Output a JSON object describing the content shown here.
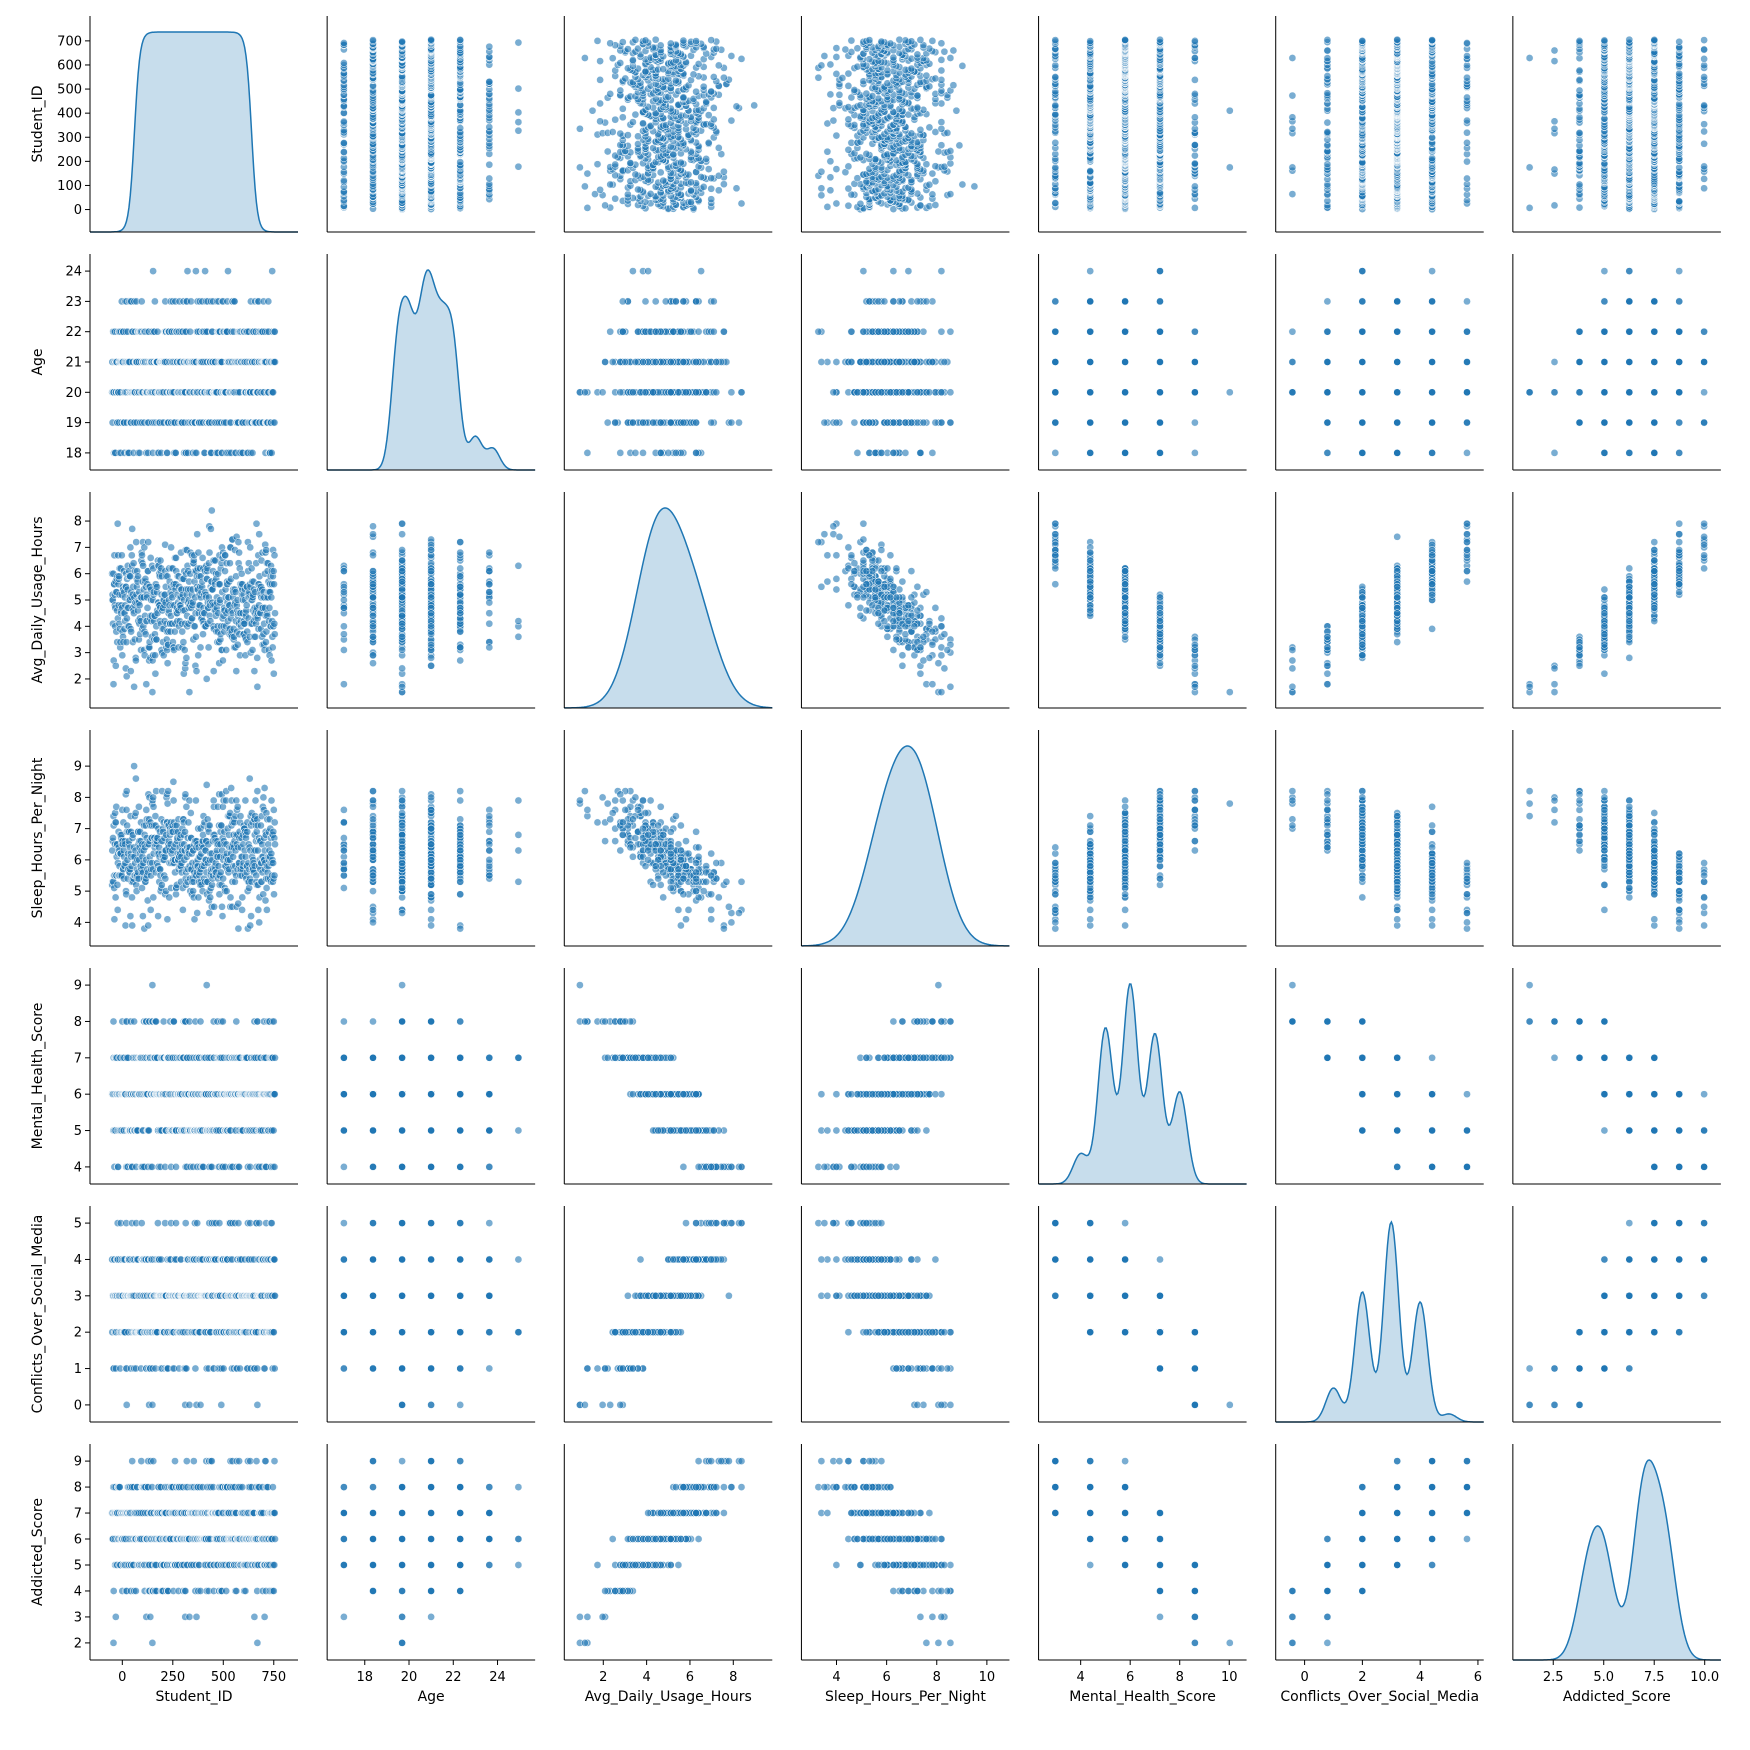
{
  "chart_data": {
    "type": "scatter",
    "variant": "pairplot",
    "diagonal": "kde",
    "colors": {
      "marker": "#1f77b4",
      "kde_fill": "#1f77b4",
      "axis": "#000000"
    },
    "grid": false,
    "variables": [
      {
        "name": "Student_ID",
        "lim": [
          -60,
          770
        ],
        "ticks": [
          0,
          100,
          200,
          300,
          400,
          500,
          600,
          700
        ],
        "xticks": [
          0,
          250,
          500,
          750
        ],
        "xtick_labels": [
          "0",
          "250",
          "500",
          "750"
        ]
      },
      {
        "name": "Age",
        "lim": [
          17.7,
          24.3
        ],
        "ticks": [
          18,
          19,
          20,
          21,
          22,
          23,
          24
        ],
        "xticks": [
          18,
          20,
          22,
          24
        ],
        "xtick_labels": [
          "18",
          "20",
          "22",
          "24"
        ]
      },
      {
        "name": "Avg_Daily_Usage_Hours",
        "lim": [
          1.2,
          8.8
        ],
        "ticks": [
          2,
          3,
          4,
          5,
          6,
          7,
          8
        ],
        "xticks": [
          2,
          4,
          6,
          8
        ],
        "xtick_labels": [
          "2",
          "4",
          "6",
          "8"
        ]
      },
      {
        "name": "Sleep_Hours_Per_Night",
        "lim": [
          3.5,
          9.9
        ],
        "ticks": [
          4,
          5,
          6,
          7,
          8,
          9
        ],
        "xticks": [
          4,
          6,
          8,
          10
        ],
        "xtick_labels": [
          "4",
          "6",
          "8",
          "10"
        ]
      },
      {
        "name": "Mental_Health_Score",
        "lim": [
          3.75,
          9.25
        ],
        "ticks": [
          4,
          5,
          6,
          7,
          8,
          9
        ],
        "xticks": [
          4,
          6,
          8,
          10
        ],
        "xtick_labels": [
          "4",
          "6",
          "8",
          "10"
        ]
      },
      {
        "name": "Conflicts_Over_Social_Media",
        "lim": [
          -0.25,
          5.25
        ],
        "ticks": [
          0,
          1,
          2,
          3,
          4,
          5
        ],
        "xticks": [
          0,
          2,
          4,
          6
        ],
        "xtick_labels": [
          "0",
          "2",
          "4",
          "6"
        ]
      },
      {
        "name": "Addicted_Score",
        "lim": [
          1.65,
          9.35
        ],
        "ticks": [
          2,
          3,
          4,
          5,
          6,
          7,
          8,
          9
        ],
        "xticks": [
          2.5,
          5.0,
          7.5,
          10.0
        ],
        "xtick_labels": [
          "2.5",
          "5.0",
          "7.5",
          "10.0"
        ]
      }
    ],
    "diagonal_xlims": [
      [
        -160,
        870
      ],
      [
        16.3,
        25.7
      ],
      [
        0.2,
        9.8
      ],
      [
        2.6,
        10.9
      ],
      [
        2.3,
        10.7
      ],
      [
        -1,
        6.2
      ],
      [
        0.5,
        10.8
      ]
    ],
    "kde_peaks": {
      "Student_ID": [
        [
          150,
          700
        ],
        [
          600,
          700
        ]
      ],
      "Age": [
        [
          19.5,
          1.0
        ],
        [
          20.0,
          1.05
        ],
        [
          20.6,
          0.98
        ],
        [
          21.0,
          1.02
        ],
        [
          21.5,
          0.93
        ],
        [
          22.0,
          0.97
        ],
        [
          23.0,
          0.28
        ],
        [
          23.8,
          0.18
        ]
      ],
      "Avg_Daily_Usage_Hours": [
        [
          4.5,
          1.0
        ],
        [
          6.2,
          0.56
        ]
      ],
      "Sleep_Hours_Per_Night": [
        [
          6.0,
          0.75
        ],
        [
          7.3,
          1.0
        ]
      ],
      "Mental_Health_Score": [
        [
          4.0,
          0.15
        ],
        [
          5.0,
          0.78
        ],
        [
          6.0,
          1.0
        ],
        [
          7.0,
          0.75
        ],
        [
          8.0,
          0.46
        ]
      ],
      "Conflicts_Over_Social_Media": [
        [
          1.0,
          0.17
        ],
        [
          2.0,
          0.65
        ],
        [
          3.0,
          1.0
        ],
        [
          4.0,
          0.6
        ],
        [
          5.0,
          0.04
        ]
      ],
      "Addicted_Score": [
        [
          4.2,
          0.45
        ],
        [
          5.0,
          0.58
        ],
        [
          7.0,
          1.0
        ],
        [
          8.0,
          0.72
        ]
      ]
    },
    "n_points": 705
  }
}
